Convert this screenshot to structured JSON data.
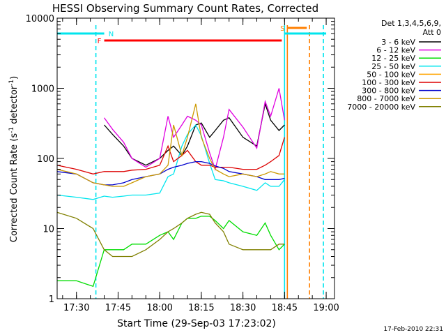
{
  "chart_data": {
    "type": "line",
    "title": "HESSI Observing Summary Count Rates, Corrected",
    "xlabel": "Start Time (29-Sep-03 17:23:02)",
    "ylabel": "Corrected Count Rate (s",
    "ylabel_sup1": "-1",
    "ylabel_mid": " detector",
    "ylabel_sup2": "-1",
    "ylabel_end": ")",
    "xlim": [
      "17:23:02",
      "19:03:00"
    ],
    "ylim": [
      1,
      10000
    ],
    "yscale": "log",
    "x_ticks": [
      "17:30",
      "17:45",
      "18:00",
      "18:15",
      "18:30",
      "18:45",
      "19:00"
    ],
    "y_ticks": [
      "1",
      "10",
      "100",
      "1000",
      "10000"
    ],
    "legend_header": [
      "Det 1,3,4,5,6,9,",
      "Att 0"
    ],
    "legend_position": "right",
    "timestamp": "17-Feb-2010 22:31",
    "flags": [
      {
        "label": "N",
        "color": "#00e5ee",
        "start": "17:23",
        "end": "17:40",
        "start2": "18:45",
        "end2": "19:00"
      },
      {
        "label": "F",
        "color": "#ff0000",
        "start": "17:40",
        "end": "18:44"
      },
      {
        "label": "S",
        "color": "#ff7f00",
        "start": "18:46",
        "end": "18:53"
      }
    ],
    "vlines": [
      {
        "time": "17:37",
        "color": "#00e5ee",
        "style": "dashed"
      },
      {
        "time": "18:45",
        "color": "#00e5ee",
        "style": "solid"
      },
      {
        "time": "18:46",
        "color": "#ff7f00",
        "style": "solid"
      },
      {
        "time": "18:54",
        "color": "#ff7f00",
        "style": "dashed"
      },
      {
        "time": "18:59",
        "color": "#00e5ee",
        "style": "dashed"
      }
    ],
    "x": [
      "17:23",
      "17:30",
      "17:36",
      "17:40",
      "17:43",
      "17:47",
      "17:50",
      "17:55",
      "18:00",
      "18:03",
      "18:05",
      "18:08",
      "18:10",
      "18:13",
      "18:15",
      "18:18",
      "18:20",
      "18:23",
      "18:25",
      "18:30",
      "18:35",
      "18:38",
      "18:40",
      "18:43",
      "18:45"
    ],
    "series": [
      {
        "name": "3 - 6 keV",
        "color": "#000000",
        "values": [
          null,
          null,
          null,
          300,
          220,
          150,
          100,
          80,
          100,
          130,
          150,
          110,
          150,
          300,
          320,
          200,
          250,
          350,
          380,
          200,
          150,
          600,
          350,
          250,
          300
        ]
      },
      {
        "name": "6 - 12 keV",
        "color": "#e000e0",
        "values": [
          null,
          null,
          null,
          380,
          260,
          170,
          100,
          75,
          100,
          400,
          200,
          300,
          400,
          350,
          300,
          120,
          70,
          200,
          500,
          280,
          140,
          650,
          400,
          1000,
          350
        ]
      },
      {
        "name": "12 - 25 keV",
        "color": "#00dd00",
        "values": [
          1.8,
          1.8,
          1.5,
          5,
          5,
          5,
          6,
          6,
          8,
          9,
          7,
          12,
          14,
          14,
          15,
          15,
          13,
          10,
          13,
          9,
          8,
          12,
          8,
          5,
          6
        ]
      },
      {
        "name": "25 - 50 keV",
        "color": "#00e5ee",
        "values": [
          30,
          28,
          26,
          29,
          28,
          29,
          30,
          30,
          32,
          55,
          60,
          150,
          220,
          300,
          210,
          85,
          50,
          48,
          45,
          40,
          35,
          45,
          40,
          40,
          50
        ]
      },
      {
        "name": "50 - 100 keV",
        "color": "#ffa500",
        "values": [
          null,
          null,
          null,
          null,
          null,
          null,
          null,
          null,
          null,
          null,
          null,
          null,
          null,
          null,
          null,
          null,
          null,
          null,
          null,
          null,
          null,
          null,
          null,
          null,
          null
        ]
      },
      {
        "name": "100 - 300 keV",
        "color": "#dd0000",
        "values": [
          80,
          70,
          60,
          65,
          65,
          65,
          68,
          70,
          80,
          150,
          90,
          110,
          130,
          90,
          80,
          80,
          75,
          75,
          75,
          70,
          70,
          80,
          90,
          110,
          200
        ]
      },
      {
        "name": "300 - 800 keV",
        "color": "#0000cc",
        "values": [
          65,
          60,
          45,
          42,
          42,
          45,
          50,
          55,
          60,
          70,
          75,
          80,
          85,
          90,
          90,
          85,
          78,
          72,
          65,
          60,
          55,
          50,
          50,
          50,
          52
        ]
      },
      {
        "name": "800 - 7000 keV",
        "color": "#cc9900",
        "values": [
          70,
          60,
          45,
          42,
          40,
          40,
          45,
          55,
          60,
          80,
          300,
          110,
          200,
          600,
          200,
          100,
          70,
          60,
          55,
          60,
          55,
          60,
          65,
          60,
          60
        ]
      },
      {
        "name": "7000 - 20000 keV",
        "color": "#808000",
        "values": [
          17,
          14,
          10,
          5,
          4,
          4,
          4,
          5,
          7,
          9,
          10,
          12,
          14,
          16,
          17,
          16,
          12,
          9,
          6,
          5,
          5,
          5,
          5,
          6,
          6
        ]
      }
    ]
  }
}
